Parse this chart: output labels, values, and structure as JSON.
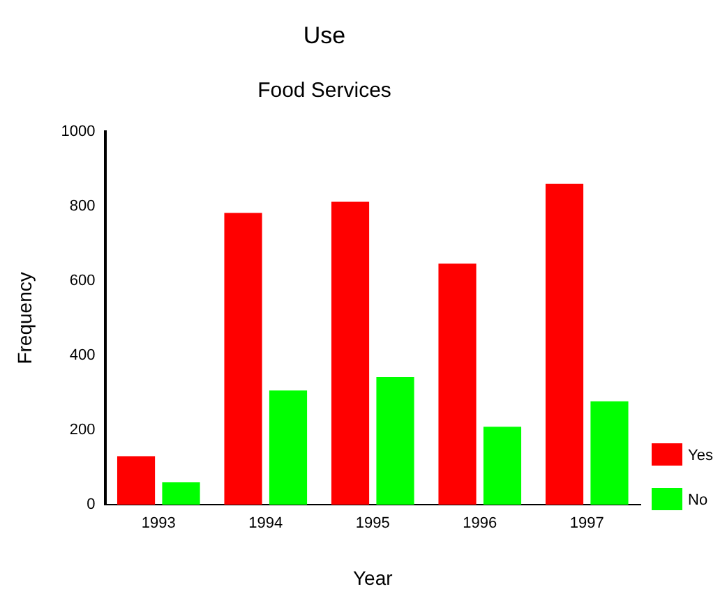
{
  "chart_data": {
    "type": "bar",
    "title": "Use",
    "subtitle": "Food Services",
    "xlabel": "Year",
    "ylabel": "Frequency",
    "categories": [
      "1993",
      "1994",
      "1995",
      "1996",
      "1997"
    ],
    "series": [
      {
        "name": "Yes",
        "color": "#ff0000",
        "values": [
          130,
          782,
          812,
          646,
          860
        ]
      },
      {
        "name": "No",
        "color": "#00ff00",
        "values": [
          60,
          306,
          342,
          209,
          277
        ]
      }
    ],
    "ylim": [
      0,
      1000
    ],
    "yticks": [
      0,
      200,
      400,
      600,
      800,
      1000
    ],
    "grid": false,
    "legend": "bottom right"
  }
}
